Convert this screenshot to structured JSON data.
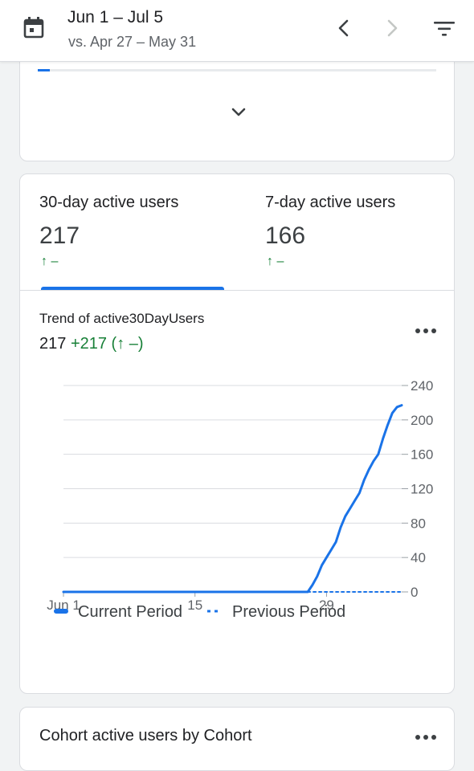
{
  "header": {
    "date_range": "Jun 1 – Jul 5",
    "compare_range": "vs. Apr 27 – May 31",
    "icons": [
      "calendar-icon",
      "chevron-left-icon",
      "chevron-right-icon",
      "filter-icon"
    ]
  },
  "top_card": {
    "progress_fraction": 0.03,
    "expand_icon": "chevron-down-icon"
  },
  "metrics": [
    {
      "label": "30-day active users",
      "value": "217",
      "change": "↑ –",
      "selected": true
    },
    {
      "label": "7-day active users",
      "value": "166",
      "change": "↑ –",
      "selected": false
    }
  ],
  "trend": {
    "title": "Trend of active30DayUsers",
    "value": "217",
    "delta": "+217 (↑ –)",
    "more_icon": "more-horizontal-icon"
  },
  "chart_data": {
    "type": "line",
    "x_tick_labels": [
      "Jun 1",
      "15",
      "29"
    ],
    "y_tick_labels": [
      "240",
      "200",
      "160",
      "120",
      "80",
      "40",
      "0"
    ],
    "ylim": [
      0,
      240
    ],
    "y_axis_side": "right",
    "grid": true,
    "legend_position": "bottom",
    "x_range_days": [
      0,
      34
    ],
    "series": [
      {
        "name": "Current Period",
        "style": "solid",
        "color": "#1a73e8",
        "points": [
          [
            0,
            0
          ],
          [
            26,
            0
          ],
          [
            26.5,
            8
          ],
          [
            27,
            18
          ],
          [
            27.5,
            31
          ],
          [
            28,
            40
          ],
          [
            28.5,
            49
          ],
          [
            29,
            58
          ],
          [
            29.5,
            75
          ],
          [
            30,
            88
          ],
          [
            30.5,
            97
          ],
          [
            31,
            106
          ],
          [
            31.5,
            115
          ],
          [
            32,
            130
          ],
          [
            32.5,
            142
          ],
          [
            33,
            152
          ],
          [
            33.5,
            160
          ],
          [
            34,
            178
          ],
          [
            34.5,
            194
          ],
          [
            35,
            208
          ],
          [
            35.5,
            215
          ],
          [
            36,
            217
          ]
        ]
      },
      {
        "name": "Previous Period",
        "style": "dotted",
        "color": "#1a73e8",
        "points": [
          [
            26,
            0
          ],
          [
            36,
            0
          ]
        ]
      }
    ]
  },
  "cohort_card": {
    "title": "Cohort active users by Cohort",
    "more_icon": "more-horizontal-icon"
  }
}
